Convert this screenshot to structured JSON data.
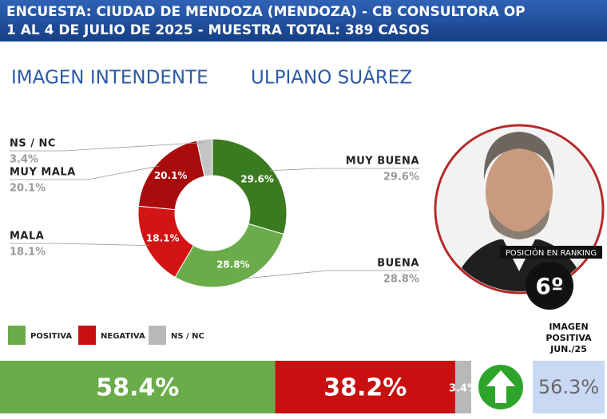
{
  "header": {
    "line1": "ENCUESTA: CIUDAD DE MENDOZA (MENDOZA) - CB CONSULTORA OP",
    "line2": "1 AL 4 DE JULIO DE 2025 - MUESTRA TOTAL: 389 CASOS"
  },
  "subtitle": {
    "left": "IMAGEN INTENDENTE",
    "right": "ULPIANO SUÁREZ"
  },
  "chart_data": [
    {
      "type": "pie",
      "categories": [
        "MUY BUENA",
        "BUENA",
        "MALA",
        "MUY MALA",
        "NS / NC"
      ],
      "values": [
        29.6,
        28.8,
        18.1,
        20.1,
        3.4
      ],
      "value_labels": [
        "29.6%",
        "28.8%",
        "18.1%",
        "20.1%",
        "3.4%"
      ],
      "colors": [
        "#3b7b20",
        "#6aac4a",
        "#d41414",
        "#a80c0c",
        "#c4c4c4"
      ]
    },
    {
      "type": "stacked-bar",
      "xlim": [
        0,
        100
      ],
      "series": [
        {
          "name": "POSITIVA",
          "color": "#6aac4a",
          "values": [
            58.4
          ],
          "value_labels": [
            "58.4%"
          ]
        },
        {
          "name": "NEGATIVA",
          "color": "#c81010",
          "values": [
            38.2
          ],
          "value_labels": [
            "38.2%"
          ]
        },
        {
          "name": "NS / NC",
          "color": "#b8b8b8",
          "values": [
            3.4
          ],
          "value_labels": [
            "3.4%"
          ]
        }
      ]
    }
  ],
  "ranking": {
    "label": "POSICIÓN EN RANKING",
    "position": "6º"
  },
  "previous": {
    "label": [
      "IMAGEN",
      "POSITIVA",
      "JUN./25"
    ],
    "value": "56.3%"
  }
}
